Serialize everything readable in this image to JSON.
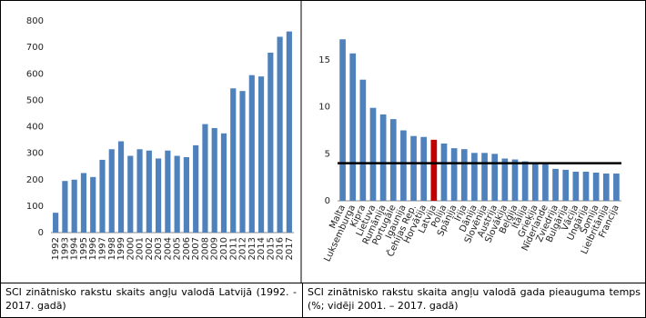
{
  "chart_data": [
    {
      "type": "bar",
      "caption": "SCI zinātnisko rakstu skaits angļu valodā Latvijā (1992. - 2017. gadā)",
      "categories": [
        "1992",
        "1993",
        "1994",
        "1995",
        "1996",
        "1997",
        "1998",
        "1999",
        "2000",
        "2001",
        "2002",
        "2003",
        "2004",
        "2005",
        "2006",
        "2007",
        "2008",
        "2009",
        "2010",
        "2011",
        "2012",
        "2013",
        "2014",
        "2015",
        "2016",
        "2017"
      ],
      "values": [
        75,
        195,
        200,
        225,
        210,
        275,
        315,
        345,
        290,
        315,
        310,
        280,
        310,
        290,
        285,
        330,
        410,
        395,
        375,
        545,
        535,
        595,
        590,
        680,
        740,
        760
      ],
      "color": "#4f81bd",
      "ylim": [
        0,
        800
      ],
      "yticks": [
        0,
        100,
        200,
        300,
        400,
        500,
        600,
        700,
        800
      ]
    },
    {
      "type": "bar",
      "caption": "SCI zinātnisko rakstu skaita angļu valodā gada pieauguma temps (%; vidēji 2001. – 2017. gadā)",
      "categories": [
        "Malta",
        "Luksemburga",
        "Kipra",
        "Lietuva",
        "Rumānija",
        "Portugāle",
        "Igaunija",
        "Čehijas Rep.",
        "Horvātija",
        "Latvija",
        "Polija",
        "Spānija",
        "Īrija",
        "Dānija",
        "Slovēnija",
        "Austrija",
        "Slovākija",
        "Beļģija",
        "Itālija",
        "Grieķija",
        "Nīderlande",
        "Zviedrija",
        "Bulgārija",
        "Vācija",
        "Ungārija",
        "Somija",
        "Lielbritānija",
        "Francija"
      ],
      "values": [
        17.2,
        15.7,
        12.9,
        9.9,
        9.2,
        8.7,
        7.5,
        6.9,
        6.8,
        6.5,
        6.1,
        5.6,
        5.5,
        5.1,
        5.1,
        5.0,
        4.5,
        4.4,
        4.2,
        4.0,
        3.9,
        3.4,
        3.3,
        3.1,
        3.1,
        3.0,
        2.9,
        2.9
      ],
      "colors": [
        "#4f81bd",
        "#4f81bd",
        "#4f81bd",
        "#4f81bd",
        "#4f81bd",
        "#4f81bd",
        "#4f81bd",
        "#4f81bd",
        "#4f81bd",
        "#c00000",
        "#4f81bd",
        "#4f81bd",
        "#4f81bd",
        "#4f81bd",
        "#4f81bd",
        "#4f81bd",
        "#4f81bd",
        "#4f81bd",
        "#4f81bd",
        "#4f81bd",
        "#4f81bd",
        "#4f81bd",
        "#4f81bd",
        "#4f81bd",
        "#4f81bd",
        "#4f81bd",
        "#4f81bd",
        "#4f81bd"
      ],
      "average": 4.0,
      "average_color": "#000000",
      "ylim": [
        0,
        18
      ],
      "yticks": [
        0,
        5,
        10,
        15
      ]
    }
  ]
}
